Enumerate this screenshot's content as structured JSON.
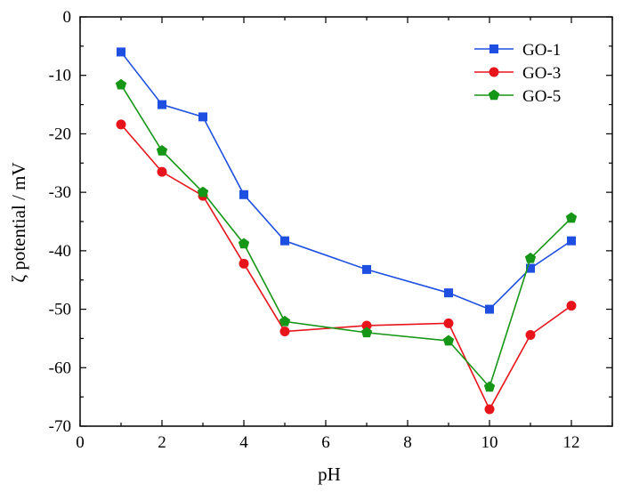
{
  "chart_data": {
    "type": "line",
    "xlabel": "pH",
    "ylabel": "ζ potential / mV",
    "xlim": [
      0,
      13
    ],
    "ylim": [
      -70,
      0
    ],
    "x_ticks": [
      0,
      2,
      4,
      6,
      8,
      10,
      12
    ],
    "y_ticks": [
      0,
      -10,
      -20,
      -30,
      -40,
      -50,
      -60,
      -70
    ],
    "grid": false,
    "legend_position": "top-right",
    "series": [
      {
        "name": "GO-1",
        "color": "#1f4fe0",
        "marker": "square",
        "points": [
          {
            "x": 1,
            "y": -6.0
          },
          {
            "x": 2,
            "y": -15.0
          },
          {
            "x": 3,
            "y": -17.1
          },
          {
            "x": 4,
            "y": -30.4
          },
          {
            "x": 5,
            "y": -38.3
          },
          {
            "x": 7,
            "y": -43.2
          },
          {
            "x": 9,
            "y": -47.2
          },
          {
            "x": 10,
            "y": -50.0
          },
          {
            "x": 11,
            "y": -43.0
          },
          {
            "x": 12,
            "y": -38.3
          }
        ]
      },
      {
        "name": "GO-3",
        "color": "#e8141c",
        "marker": "circle",
        "points": [
          {
            "x": 1,
            "y": -18.4
          },
          {
            "x": 2,
            "y": -26.5
          },
          {
            "x": 3,
            "y": -30.6
          },
          {
            "x": 4,
            "y": -42.2
          },
          {
            "x": 5,
            "y": -53.8
          },
          {
            "x": 7,
            "y": -52.8
          },
          {
            "x": 9,
            "y": -52.4
          },
          {
            "x": 10,
            "y": -67.1
          },
          {
            "x": 11,
            "y": -54.4
          },
          {
            "x": 12,
            "y": -49.4
          }
        ]
      },
      {
        "name": "GO-5",
        "color": "#169616",
        "marker": "pentagon",
        "points": [
          {
            "x": 1,
            "y": -11.6
          },
          {
            "x": 2,
            "y": -22.9
          },
          {
            "x": 3,
            "y": -30.0
          },
          {
            "x": 4,
            "y": -38.8
          },
          {
            "x": 5,
            "y": -52.1
          },
          {
            "x": 7,
            "y": -54.0
          },
          {
            "x": 9,
            "y": -55.4
          },
          {
            "x": 10,
            "y": -63.3
          },
          {
            "x": 11,
            "y": -41.3
          },
          {
            "x": 12,
            "y": -34.4
          }
        ]
      }
    ]
  }
}
